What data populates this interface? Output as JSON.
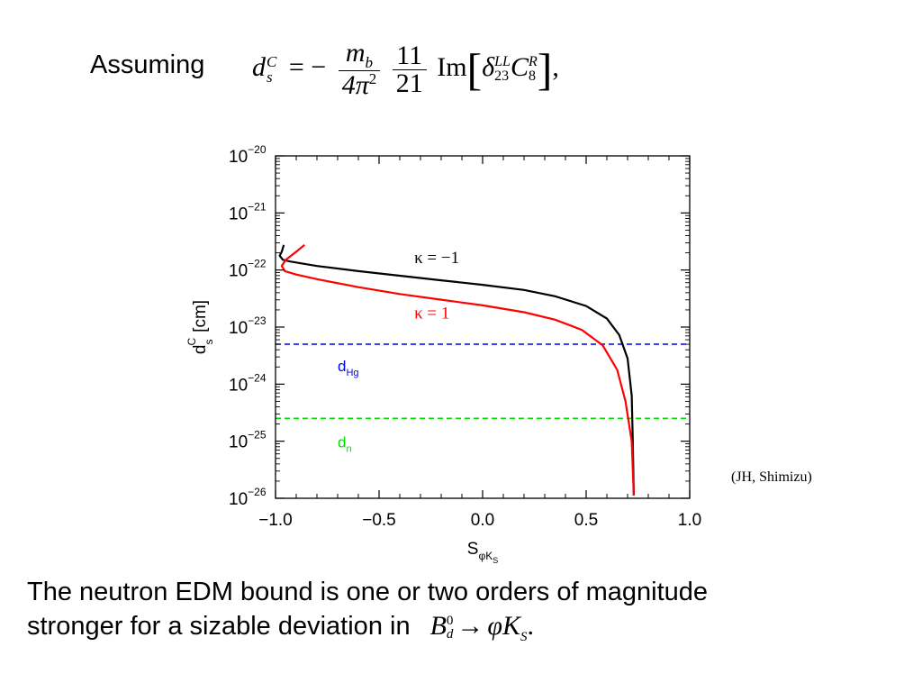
{
  "slide": {
    "assuming_label": "Assuming",
    "credit": "(JH, Shimizu)",
    "bottom_line1": "The neutron EDM bound is one or two orders of magnitude",
    "bottom_line2": "stronger for a sizable  deviation in"
  },
  "formula": {
    "lhs_base": "d",
    "lhs_sup": "C",
    "lhs_sub": "s",
    "equals_minus": "= −",
    "frac1_num_base": "m",
    "frac1_num_sub": "b",
    "frac1_den_base": "4π",
    "frac1_den_sup": "2",
    "frac2_num": "11",
    "frac2_den": "21",
    "im": "Im",
    "delta": "δ",
    "delta_sup": "LL",
    "delta_sub": "23",
    "c_base": "C",
    "c_sup": "R",
    "c_sub": "8",
    "comma": ","
  },
  "decay": {
    "b": "B",
    "b_sup": "0",
    "b_sub": "d",
    "arrow": "→",
    "phi": "φ",
    "k": "K",
    "k_sub": "S",
    "period": "."
  },
  "chart_data": {
    "type": "line",
    "xlabel": "S",
    "xlabel_sub": "φK",
    "xlabel_subsub": "S",
    "ylabel": "d",
    "ylabel_sup": "C",
    "ylabel_sub": "s",
    "ylabel_unit": "[cm]",
    "xlim": [
      -1.0,
      1.0
    ],
    "ylim_exp": [
      -26,
      -20
    ],
    "y_scale": "log",
    "x_ticks": [
      "−1.0",
      "−0.5",
      "0.0",
      "0.5",
      "1.0"
    ],
    "y_ticks": [
      {
        "base": "10",
        "exp": "−20"
      },
      {
        "base": "10",
        "exp": "−21"
      },
      {
        "base": "10",
        "exp": "−22"
      },
      {
        "base": "10",
        "exp": "−23"
      },
      {
        "base": "10",
        "exp": "−24"
      },
      {
        "base": "10",
        "exp": "−25"
      },
      {
        "base": "10",
        "exp": "−26"
      }
    ],
    "series": [
      {
        "name": "κ = −1",
        "color": "#000000",
        "points": [
          [
            -0.96,
            -21.56
          ],
          [
            -0.97,
            -21.68
          ],
          [
            -0.98,
            -21.75
          ],
          [
            -0.965,
            -21.82
          ],
          [
            -0.93,
            -21.85
          ],
          [
            -0.8,
            -21.93
          ],
          [
            -0.6,
            -22.02
          ],
          [
            -0.4,
            -22.1
          ],
          [
            -0.2,
            -22.18
          ],
          [
            0.0,
            -22.26
          ],
          [
            0.2,
            -22.35
          ],
          [
            0.35,
            -22.46
          ],
          [
            0.5,
            -22.63
          ],
          [
            0.6,
            -22.85
          ],
          [
            0.66,
            -23.14
          ],
          [
            0.7,
            -23.55
          ],
          [
            0.72,
            -24.2
          ],
          [
            0.725,
            -25.0
          ],
          [
            0.73,
            -25.95
          ]
        ]
      },
      {
        "name": "κ = 1",
        "color": "#ff0000",
        "points": [
          [
            -0.86,
            -21.56
          ],
          [
            -0.9,
            -21.68
          ],
          [
            -0.95,
            -21.82
          ],
          [
            -0.97,
            -21.93
          ],
          [
            -0.955,
            -22.02
          ],
          [
            -0.9,
            -22.08
          ],
          [
            -0.8,
            -22.16
          ],
          [
            -0.6,
            -22.3
          ],
          [
            -0.4,
            -22.42
          ],
          [
            -0.2,
            -22.52
          ],
          [
            0.0,
            -22.62
          ],
          [
            0.2,
            -22.74
          ],
          [
            0.35,
            -22.87
          ],
          [
            0.48,
            -23.05
          ],
          [
            0.58,
            -23.32
          ],
          [
            0.65,
            -23.75
          ],
          [
            0.69,
            -24.3
          ],
          [
            0.72,
            -25.0
          ],
          [
            0.73,
            -25.95
          ]
        ]
      }
    ],
    "bounds": [
      {
        "name": "d",
        "sub": "Hg",
        "log_value": -23.3,
        "color": "#0000ee"
      },
      {
        "name": "d",
        "sub": "n",
        "log_value": -24.6,
        "color": "#00dd00"
      }
    ]
  }
}
